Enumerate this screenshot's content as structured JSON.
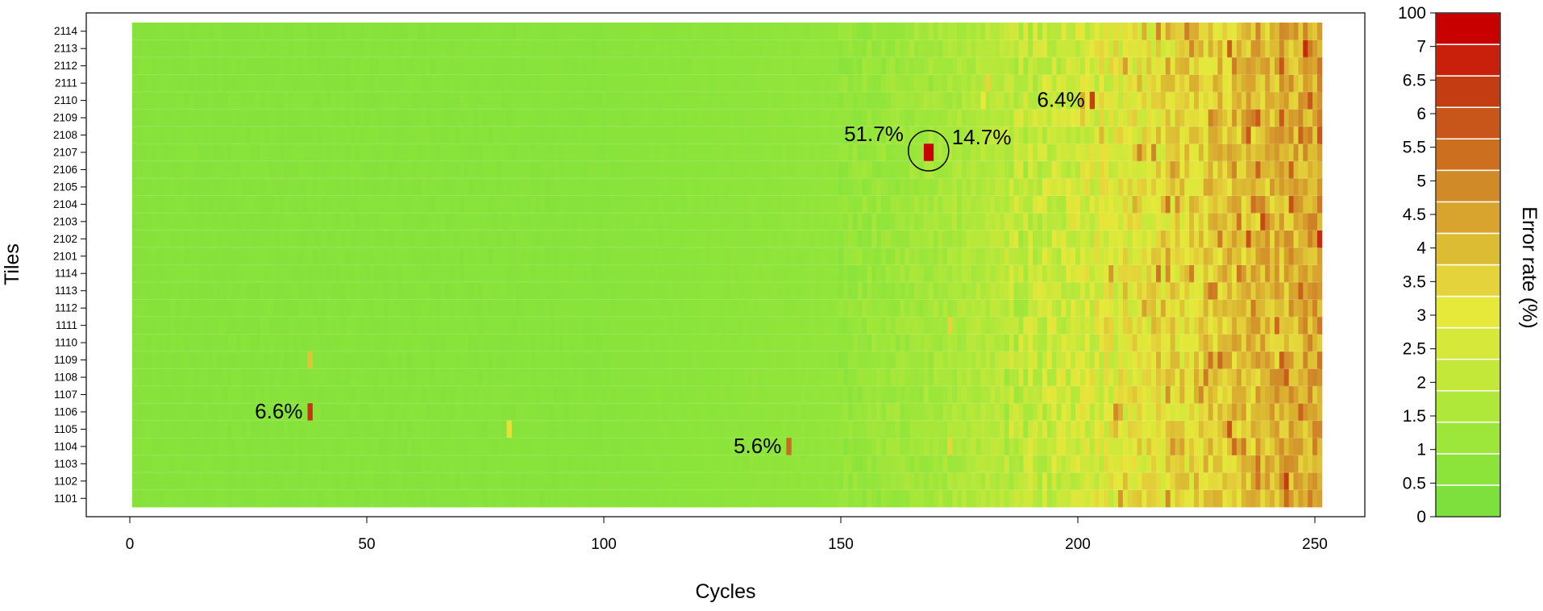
{
  "chart_data": {
    "type": "heatmap",
    "xlabel": "Cycles",
    "ylabel": "Tiles",
    "x_ticks": [
      "0",
      "50",
      "100",
      "150",
      "200",
      "250"
    ],
    "xlim": [
      1,
      251
    ],
    "tiles": [
      "1101",
      "1102",
      "1103",
      "1104",
      "1105",
      "1106",
      "1107",
      "1108",
      "1109",
      "1110",
      "1111",
      "1112",
      "1113",
      "1114",
      "2101",
      "2102",
      "2103",
      "2104",
      "2105",
      "2106",
      "2107",
      "2108",
      "2109",
      "2110",
      "2111",
      "2112",
      "2113",
      "2114"
    ],
    "colorbar": {
      "label": "Error rate (%)",
      "tick_labels": [
        "0",
        "0.5",
        "1",
        "1.5",
        "2",
        "2.5",
        "3",
        "3.5",
        "4",
        "4.5",
        "5",
        "5.5",
        "6",
        "6.5",
        "7",
        "100"
      ],
      "colors": [
        "#7ee03c",
        "#8ce43a",
        "#9de63a",
        "#b0e83a",
        "#c3e83a",
        "#d6e83a",
        "#e6e83a",
        "#e4d33a",
        "#dcbc32",
        "#d8a42e",
        "#d08a28",
        "#cc7020",
        "#c8561a",
        "#c43c12",
        "#c8200a",
        "#c80000"
      ],
      "grid": false
    },
    "baseline": [
      {
        "cycle": 1,
        "error_rate": 0.3
      },
      {
        "cycle": 100,
        "error_rate": 0.35
      },
      {
        "cycle": 150,
        "error_rate": 0.7
      },
      {
        "cycle": 170,
        "error_rate": 1.2
      },
      {
        "cycle": 185,
        "error_rate": 1.8
      },
      {
        "cycle": 200,
        "error_rate": 2.4
      },
      {
        "cycle": 215,
        "error_rate": 3.0
      },
      {
        "cycle": 230,
        "error_rate": 3.7
      },
      {
        "cycle": 245,
        "error_rate": 4.2
      },
      {
        "cycle": 251,
        "error_rate": 4.5
      }
    ],
    "spikes": [
      {
        "tile": "2107",
        "cycle": 168,
        "error_rate": 51.7
      },
      {
        "tile": "2107",
        "cycle": 169,
        "error_rate": 14.7
      },
      {
        "tile": "2110",
        "cycle": 203,
        "error_rate": 6.4
      },
      {
        "tile": "1106",
        "cycle": 38,
        "error_rate": 6.6
      },
      {
        "tile": "1104",
        "cycle": 139,
        "error_rate": 5.6
      },
      {
        "tile": "1109",
        "cycle": 38,
        "error_rate": 3.8
      },
      {
        "tile": "1105",
        "cycle": 80,
        "error_rate": 3.2
      },
      {
        "tile": "1104",
        "cycle": 173,
        "error_rate": 3.4
      },
      {
        "tile": "1111",
        "cycle": 173,
        "error_rate": 3.5
      },
      {
        "tile": "2111",
        "cycle": 181,
        "error_rate": 3.4
      },
      {
        "tile": "2110",
        "cycle": 180,
        "error_rate": 3.0
      }
    ],
    "annotations": [
      {
        "text": "51.7%",
        "tile": "2107",
        "cycle": 168,
        "side": "left"
      },
      {
        "text": "14.7%",
        "tile": "2107",
        "cycle": 169,
        "side": "right"
      },
      {
        "text": "6.4%",
        "tile": "2110",
        "cycle": 203,
        "side": "left"
      },
      {
        "text": "6.6%",
        "tile": "1106",
        "cycle": 38,
        "side": "left"
      },
      {
        "text": "5.6%",
        "tile": "1104",
        "cycle": 139,
        "side": "left"
      }
    ],
    "circled": {
      "tile": "2107",
      "cycle": 168
    }
  }
}
